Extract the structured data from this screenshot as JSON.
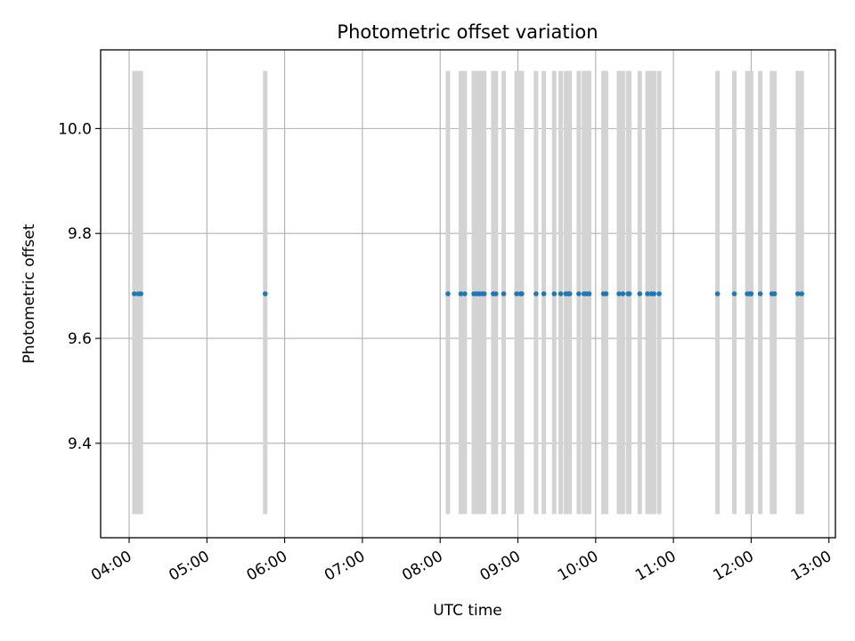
{
  "chart_data": {
    "type": "scatter",
    "title": "Photometric offset variation",
    "xlabel": "UTC time",
    "ylabel": "Photometric offset",
    "x_unit": "UTC time (HH:MM)",
    "xlim": [
      "03:38",
      "13:05"
    ],
    "ylim": [
      9.22,
      10.15
    ],
    "x_ticks": [
      "04:00",
      "05:00",
      "06:00",
      "07:00",
      "08:00",
      "09:00",
      "10:00",
      "11:00",
      "12:00",
      "13:00"
    ],
    "y_ticks": [
      9.4,
      9.6,
      9.8,
      10.0
    ],
    "y_tick_labels": [
      "9.4",
      "9.6",
      "9.8",
      "10.0"
    ],
    "grid": true,
    "colors": {
      "points": "#1f77b4",
      "error_bars": "#d3d3d3",
      "grid": "#b0b0b0",
      "axes": "#000000"
    },
    "error_range": [
      9.265,
      10.11
    ],
    "points": [
      {
        "t": "04:04",
        "y": 9.685
      },
      {
        "t": "04:07",
        "y": 9.685
      },
      {
        "t": "04:09",
        "y": 9.685
      },
      {
        "t": "05:45",
        "y": 9.685
      },
      {
        "t": "08:06",
        "y": 9.685
      },
      {
        "t": "08:16",
        "y": 9.685
      },
      {
        "t": "08:19",
        "y": 9.685
      },
      {
        "t": "08:26",
        "y": 9.685
      },
      {
        "t": "08:28",
        "y": 9.685
      },
      {
        "t": "08:30",
        "y": 9.685
      },
      {
        "t": "08:32",
        "y": 9.685
      },
      {
        "t": "08:34",
        "y": 9.685
      },
      {
        "t": "08:41",
        "y": 9.685
      },
      {
        "t": "08:43",
        "y": 9.685
      },
      {
        "t": "08:49",
        "y": 9.685
      },
      {
        "t": "08:59",
        "y": 9.685
      },
      {
        "t": "09:02",
        "y": 9.685
      },
      {
        "t": "09:03",
        "y": 9.685
      },
      {
        "t": "09:14",
        "y": 9.685
      },
      {
        "t": "09:20",
        "y": 9.685
      },
      {
        "t": "09:28",
        "y": 9.685
      },
      {
        "t": "09:33",
        "y": 9.685
      },
      {
        "t": "09:37",
        "y": 9.685
      },
      {
        "t": "09:39",
        "y": 9.685
      },
      {
        "t": "09:40",
        "y": 9.685
      },
      {
        "t": "09:47",
        "y": 9.685
      },
      {
        "t": "09:51",
        "y": 9.685
      },
      {
        "t": "09:53",
        "y": 9.685
      },
      {
        "t": "09:55",
        "y": 9.685
      },
      {
        "t": "10:06",
        "y": 9.685
      },
      {
        "t": "10:08",
        "y": 9.685
      },
      {
        "t": "10:18",
        "y": 9.685
      },
      {
        "t": "10:21",
        "y": 9.685
      },
      {
        "t": "10:25",
        "y": 9.685
      },
      {
        "t": "10:26",
        "y": 9.685
      },
      {
        "t": "10:34",
        "y": 9.685
      },
      {
        "t": "10:40",
        "y": 9.685
      },
      {
        "t": "10:43",
        "y": 9.685
      },
      {
        "t": "10:45",
        "y": 9.685
      },
      {
        "t": "10:49",
        "y": 9.685
      },
      {
        "t": "11:34",
        "y": 9.685
      },
      {
        "t": "11:47",
        "y": 9.685
      },
      {
        "t": "11:57",
        "y": 9.685
      },
      {
        "t": "11:59",
        "y": 9.685
      },
      {
        "t": "12:00",
        "y": 9.685
      },
      {
        "t": "12:07",
        "y": 9.685
      },
      {
        "t": "12:16",
        "y": 9.685
      },
      {
        "t": "12:18",
        "y": 9.685
      },
      {
        "t": "12:36",
        "y": 9.685
      },
      {
        "t": "12:39",
        "y": 9.685
      }
    ]
  }
}
